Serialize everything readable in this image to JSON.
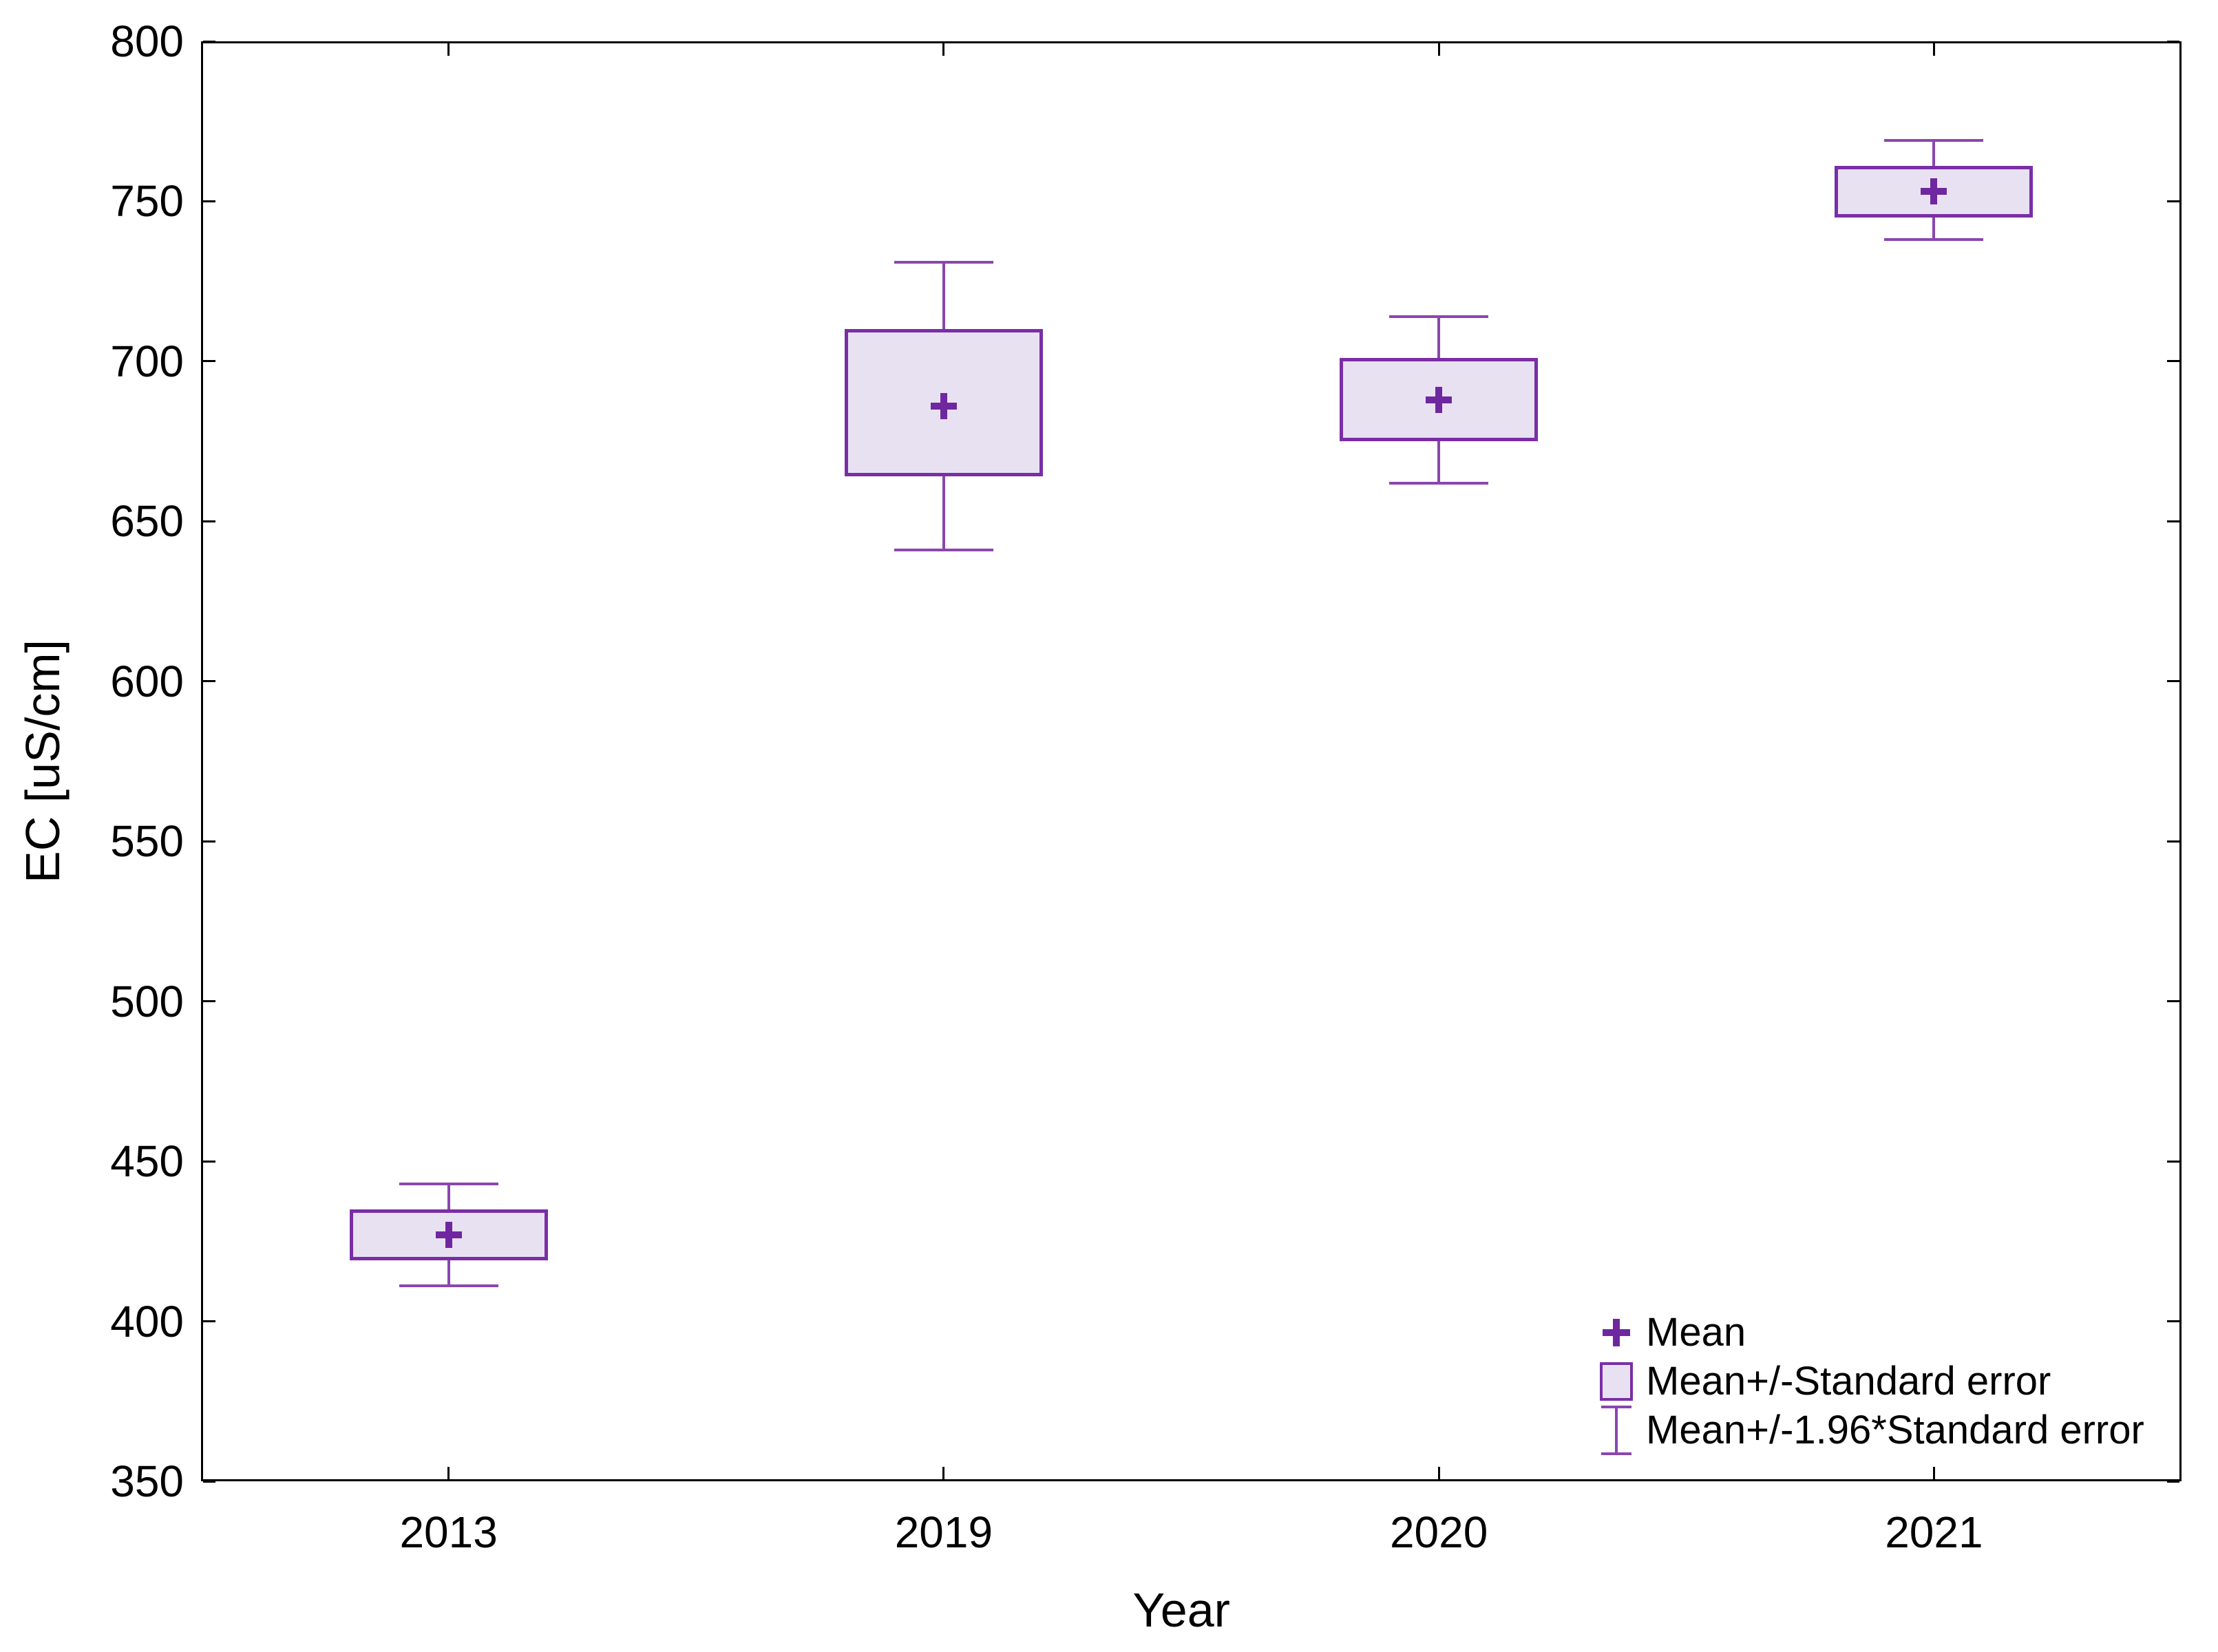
{
  "chart_data": {
    "type": "box",
    "title": "",
    "xlabel": "Year",
    "ylabel": "EC [uS/cm]",
    "ylim": [
      350,
      800
    ],
    "y_ticks": [
      350,
      400,
      450,
      500,
      550,
      600,
      650,
      700,
      750,
      800
    ],
    "grid": false,
    "legend_position": "bottom-right-inside",
    "categories": [
      "2013",
      "2019",
      "2020",
      "2021"
    ],
    "series": [
      {
        "category": "2013",
        "mean": 427,
        "box_low": 419,
        "box_high": 435,
        "whisker_low": 411,
        "whisker_high": 443
      },
      {
        "category": "2019",
        "mean": 686,
        "box_low": 664,
        "box_high": 710,
        "whisker_low": 641,
        "whisker_high": 731
      },
      {
        "category": "2020",
        "mean": 688,
        "box_low": 675,
        "box_high": 701,
        "whisker_low": 662,
        "whisker_high": 714
      },
      {
        "category": "2021",
        "mean": 753,
        "box_low": 745,
        "box_high": 761,
        "whisker_low": 738,
        "whisker_high": 769
      }
    ],
    "legend": [
      {
        "symbol": "plus",
        "label": "Mean"
      },
      {
        "symbol": "box",
        "label": "Mean+/-Standard error"
      },
      {
        "symbol": "whisker",
        "label": "Mean+/-1.96*Standard error"
      }
    ],
    "colors": {
      "box_border": "#7a2ea6",
      "box_fill": "#e8e1f2",
      "whisker": "#8a46ae",
      "mean_marker": "#6f27a0",
      "axis": "#000000",
      "text": "#000000"
    }
  }
}
